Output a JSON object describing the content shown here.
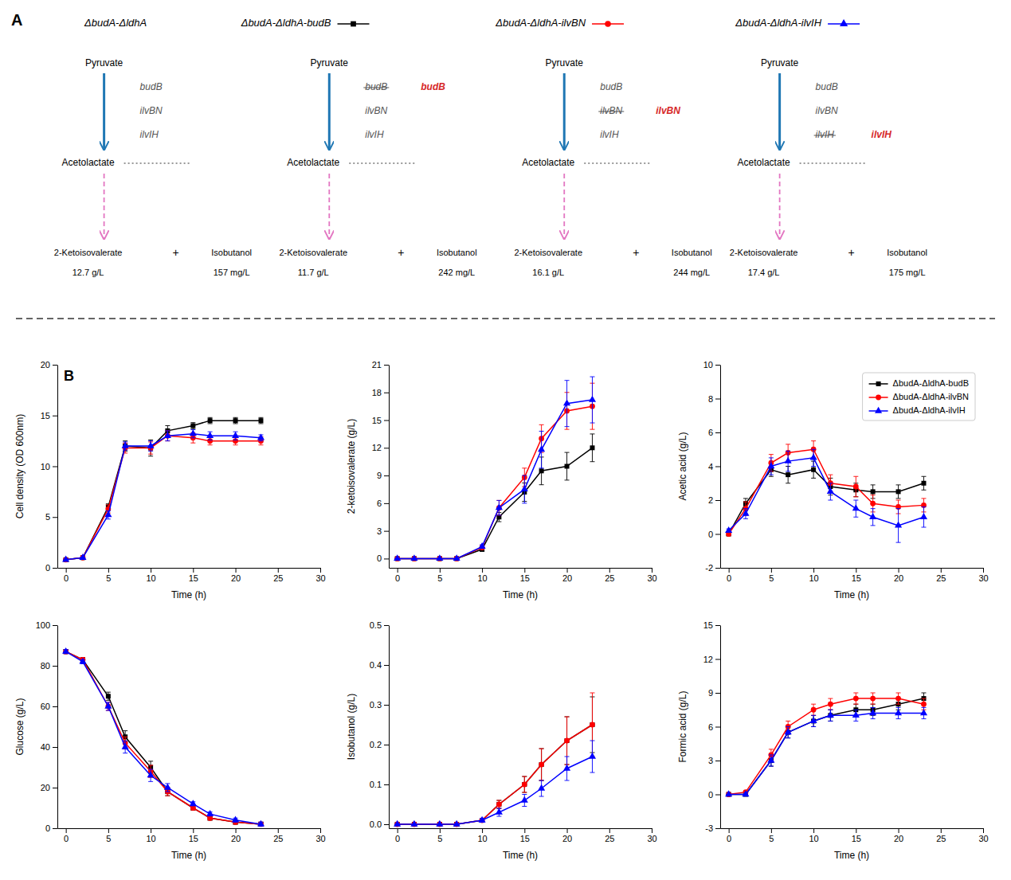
{
  "chart_data": [
    {
      "type": "diagram",
      "title": "A",
      "categories": [
        "ΔbudA-ΔldhA",
        "ΔbudA-ΔldhA-budB",
        "ΔbudA-ΔldhA-ilvBN",
        "ΔbudA-ΔldhA-ilvIH"
      ],
      "series": [
        {
          "name": "2-Ketoisovalerate",
          "values": [
            12.7,
            11.7,
            16.1,
            17.4
          ],
          "value_labels": [
            "12.7 g/L",
            "11.7 g/L",
            "16.1 g/L",
            "17.4 g/L"
          ]
        },
        {
          "name": "Isobutanol",
          "values": [
            157,
            242,
            244,
            175
          ],
          "value_labels": [
            "157 mg/L",
            "242 mg/L",
            "244 mg/L",
            "175 mg/L"
          ]
        }
      ],
      "data_labels": true,
      "annotations": [
        [
          "Pyruvate",
          "budB",
          "ilvBN",
          "ilvIH",
          "Acetolactate",
          "+"
        ],
        [
          "Pyruvate",
          "budB",
          "ilvBN",
          "ilvIH",
          "Acetolactate",
          "+",
          "budB"
        ],
        [
          "Pyruvate",
          "budB",
          "ilvBN",
          "ilvIH",
          "Acetolactate",
          "+",
          "ilvBN"
        ],
        [
          "Pyruvate",
          "budB",
          "ilvBN",
          "ilvIH",
          "Acetolactate",
          "+",
          "ilvIH"
        ]
      ]
    },
    {
      "type": "line",
      "xlabel": "Time (h)",
      "ylabel": "Cell density (OD 600nm)",
      "annotations": [
        "B"
      ],
      "x": [
        0,
        2,
        5,
        7,
        10,
        12,
        15,
        17,
        20,
        23
      ],
      "xlim": [
        -1,
        30
      ],
      "xticks": [
        0,
        5,
        10,
        15,
        20,
        25,
        30
      ],
      "ylim": [
        0,
        20
      ],
      "yticks": [
        0,
        5,
        10,
        15,
        20
      ],
      "series": [
        {
          "name": "ΔbudA-ΔldhA-budB",
          "color": "#000000",
          "marker": "square",
          "values": [
            0.8,
            1.0,
            6.0,
            12.0,
            11.8,
            13.5,
            14.0,
            14.5,
            14.5,
            14.5
          ],
          "errors": [
            0.05,
            0.05,
            0.3,
            0.5,
            0.8,
            0.5,
            0.3,
            0.3,
            0.3,
            0.3
          ]
        },
        {
          "name": "ΔbudA-ΔldhA-ilvBN",
          "color": "#ff0000",
          "marker": "circle",
          "values": [
            0.8,
            1.0,
            5.8,
            11.8,
            11.8,
            13.0,
            12.8,
            12.5,
            12.5,
            12.5
          ],
          "errors": [
            0.05,
            0.05,
            0.4,
            0.5,
            0.6,
            0.5,
            0.5,
            0.4,
            0.4,
            0.4
          ]
        },
        {
          "name": "ΔbudA-ΔldhA-ilvIH",
          "color": "#0000ff",
          "marker": "triangle",
          "values": [
            0.8,
            1.0,
            5.2,
            12.0,
            12.0,
            13.0,
            13.2,
            13.0,
            13.0,
            12.8
          ],
          "errors": [
            0.05,
            0.05,
            0.4,
            0.4,
            0.5,
            0.5,
            0.4,
            0.4,
            0.4,
            0.3
          ]
        }
      ]
    },
    {
      "type": "line",
      "xlabel": "Time (h)",
      "ylabel": "2-ketoisovalerate (g/L)",
      "x": [
        0,
        2,
        5,
        7,
        10,
        12,
        15,
        17,
        20,
        23
      ],
      "xlim": [
        -1,
        30
      ],
      "xticks": [
        0,
        5,
        10,
        15,
        20,
        25,
        30
      ],
      "ylim": [
        -1,
        21
      ],
      "yticks": [
        0,
        3,
        6,
        9,
        12,
        15,
        18,
        21
      ],
      "series": [
        {
          "name": "ΔbudA-ΔldhA-budB",
          "color": "#000000",
          "marker": "square",
          "values": [
            0.0,
            0.0,
            0.0,
            0.0,
            1.0,
            4.5,
            7.2,
            9.5,
            10.0,
            12.0
          ],
          "errors": [
            0.0,
            0.0,
            0.0,
            0.0,
            0.2,
            0.5,
            1.0,
            1.5,
            1.5,
            1.5
          ]
        },
        {
          "name": "ΔbudA-ΔldhA-ilvBN",
          "color": "#ff0000",
          "marker": "circle",
          "values": [
            0.0,
            0.0,
            0.0,
            0.0,
            1.2,
            5.5,
            8.8,
            13.0,
            16.0,
            16.5
          ],
          "errors": [
            0.0,
            0.0,
            0.0,
            0.0,
            0.2,
            0.8,
            1.0,
            1.5,
            2.0,
            2.5
          ]
        },
        {
          "name": "ΔbudA-ΔldhA-ilvIH",
          "color": "#0000ff",
          "marker": "triangle",
          "values": [
            0.0,
            0.0,
            0.0,
            0.0,
            1.3,
            5.5,
            7.5,
            11.8,
            16.8,
            17.2
          ],
          "errors": [
            0.0,
            0.0,
            0.0,
            0.0,
            0.2,
            0.8,
            1.5,
            2.0,
            2.5,
            2.5
          ]
        }
      ]
    },
    {
      "type": "line",
      "xlabel": "Time (h)",
      "ylabel": "Acetic acid (g/L)",
      "legend": "upper right",
      "x": [
        0,
        2,
        5,
        7,
        10,
        12,
        15,
        17,
        20,
        23
      ],
      "xlim": [
        -1,
        30
      ],
      "xticks": [
        0,
        5,
        10,
        15,
        20,
        25,
        30
      ],
      "ylim": [
        -2,
        10
      ],
      "yticks": [
        -2,
        0,
        2,
        4,
        6,
        8,
        10
      ],
      "series": [
        {
          "name": "ΔbudA-ΔldhA-budB",
          "color": "#000000",
          "marker": "square",
          "values": [
            0.0,
            1.8,
            3.8,
            3.5,
            3.8,
            2.8,
            2.6,
            2.5,
            2.5,
            3.0
          ],
          "errors": [
            0.1,
            0.3,
            0.4,
            0.5,
            0.5,
            0.5,
            0.4,
            0.4,
            0.4,
            0.4
          ]
        },
        {
          "name": "ΔbudA-ΔldhA-ilvBN",
          "color": "#ff0000",
          "marker": "circle",
          "values": [
            0.0,
            1.5,
            4.2,
            4.8,
            5.0,
            3.0,
            2.8,
            1.8,
            1.6,
            1.7
          ],
          "errors": [
            0.1,
            0.4,
            0.5,
            0.5,
            0.5,
            0.5,
            0.6,
            0.5,
            0.4,
            0.4
          ]
        },
        {
          "name": "ΔbudA-ΔldhA-ilvIH",
          "color": "#0000ff",
          "marker": "triangle",
          "values": [
            0.2,
            1.2,
            4.0,
            4.3,
            4.5,
            2.5,
            1.5,
            1.0,
            0.5,
            1.0
          ],
          "errors": [
            0.1,
            0.3,
            0.5,
            0.6,
            0.5,
            0.5,
            0.5,
            0.5,
            1.0,
            0.6
          ]
        }
      ]
    },
    {
      "type": "line",
      "xlabel": "Time (h)",
      "ylabel": "Glucose (g/L)",
      "x": [
        0,
        2,
        5,
        7,
        10,
        12,
        15,
        17,
        20,
        23
      ],
      "xlim": [
        -1,
        30
      ],
      "xticks": [
        0,
        5,
        10,
        15,
        20,
        25,
        30
      ],
      "ylim": [
        0,
        100
      ],
      "yticks": [
        0,
        20,
        40,
        60,
        80,
        100
      ],
      "series": [
        {
          "name": "ΔbudA-ΔldhA-budB",
          "color": "#000000",
          "marker": "square",
          "values": [
            87,
            83,
            65,
            45,
            30,
            18,
            10,
            5,
            3,
            2
          ],
          "errors": [
            1,
            1,
            2,
            3,
            3,
            2,
            1,
            1,
            1,
            1
          ]
        },
        {
          "name": "ΔbudA-ΔldhA-ilvBN",
          "color": "#ff0000",
          "marker": "circle",
          "values": [
            87,
            83,
            60,
            42,
            28,
            18,
            10,
            5,
            3,
            2
          ],
          "errors": [
            1,
            1,
            2,
            3,
            3,
            2,
            1,
            1,
            1,
            1
          ]
        },
        {
          "name": "ΔbudA-ΔldhA-ilvIH",
          "color": "#0000ff",
          "marker": "triangle",
          "values": [
            87,
            82,
            60,
            40,
            26,
            20,
            12,
            7,
            4,
            2
          ],
          "errors": [
            1,
            1,
            2,
            3,
            3,
            2,
            1,
            1,
            1,
            1
          ]
        }
      ]
    },
    {
      "type": "line",
      "xlabel": "Time (h)",
      "ylabel": "Isobutanol (g/L)",
      "x": [
        0,
        2,
        5,
        7,
        10,
        12,
        15,
        17,
        20,
        23
      ],
      "xlim": [
        -1,
        30
      ],
      "xticks": [
        0,
        5,
        10,
        15,
        20,
        25,
        30
      ],
      "ylim": [
        -0.01,
        0.5
      ],
      "yticks": [
        {
          "value": 0.0,
          "label": "0.0"
        },
        0.1,
        0.2,
        0.3,
        0.4,
        0.5
      ],
      "series": [
        {
          "name": "ΔbudA-ΔldhA-budB",
          "color": "#000000",
          "marker": "square",
          "values": [
            0.0,
            0.0,
            0.0,
            0.0,
            0.01,
            0.05,
            0.1,
            0.15,
            0.21,
            0.25
          ],
          "errors": [
            0.0,
            0.0,
            0.0,
            0.0,
            0.005,
            0.01,
            0.02,
            0.04,
            0.06,
            0.07
          ]
        },
        {
          "name": "ΔbudA-ΔldhA-ilvBN",
          "color": "#ff0000",
          "marker": "circle",
          "values": [
            0.0,
            0.0,
            0.0,
            0.0,
            0.01,
            0.05,
            0.1,
            0.15,
            0.21,
            0.25
          ],
          "errors": [
            0.0,
            0.0,
            0.0,
            0.0,
            0.005,
            0.01,
            0.02,
            0.04,
            0.06,
            0.08
          ]
        },
        {
          "name": "ΔbudA-ΔldhA-ilvIH",
          "color": "#0000ff",
          "marker": "triangle",
          "values": [
            0.0,
            0.0,
            0.0,
            0.0,
            0.01,
            0.03,
            0.06,
            0.09,
            0.14,
            0.17
          ],
          "errors": [
            0.0,
            0.0,
            0.0,
            0.0,
            0.005,
            0.01,
            0.015,
            0.02,
            0.03,
            0.04
          ]
        }
      ]
    },
    {
      "type": "line",
      "xlabel": "Time (h)",
      "ylabel": "Formic acid (g/L)",
      "x": [
        0,
        2,
        5,
        7,
        10,
        12,
        15,
        17,
        20,
        23
      ],
      "xlim": [
        -1,
        30
      ],
      "xticks": [
        0,
        5,
        10,
        15,
        20,
        25,
        30
      ],
      "ylim": [
        -3,
        15
      ],
      "yticks": [
        -3,
        0,
        3,
        6,
        9,
        12,
        15
      ],
      "series": [
        {
          "name": "ΔbudA-ΔldhA-budB",
          "color": "#000000",
          "marker": "square",
          "values": [
            0.0,
            0.0,
            3.0,
            5.5,
            6.5,
            7.0,
            7.5,
            7.5,
            8.0,
            8.5
          ],
          "errors": [
            0.0,
            0.1,
            0.5,
            0.5,
            0.5,
            0.5,
            0.5,
            0.5,
            0.5,
            0.5
          ]
        },
        {
          "name": "ΔbudA-ΔldhA-ilvBN",
          "color": "#ff0000",
          "marker": "circle",
          "values": [
            0.0,
            0.2,
            3.5,
            6.0,
            7.5,
            8.0,
            8.5,
            8.5,
            8.5,
            8.0
          ],
          "errors": [
            0.0,
            0.1,
            0.5,
            0.5,
            0.5,
            0.5,
            0.5,
            0.5,
            0.5,
            0.5
          ]
        },
        {
          "name": "ΔbudA-ΔldhA-ilvIH",
          "color": "#0000ff",
          "marker": "triangle",
          "values": [
            0.0,
            0.0,
            3.0,
            5.5,
            6.5,
            7.0,
            7.0,
            7.2,
            7.2,
            7.2
          ],
          "errors": [
            0.0,
            0.1,
            0.5,
            0.5,
            0.5,
            0.5,
            0.5,
            0.5,
            0.5,
            0.5
          ]
        }
      ]
    }
  ]
}
